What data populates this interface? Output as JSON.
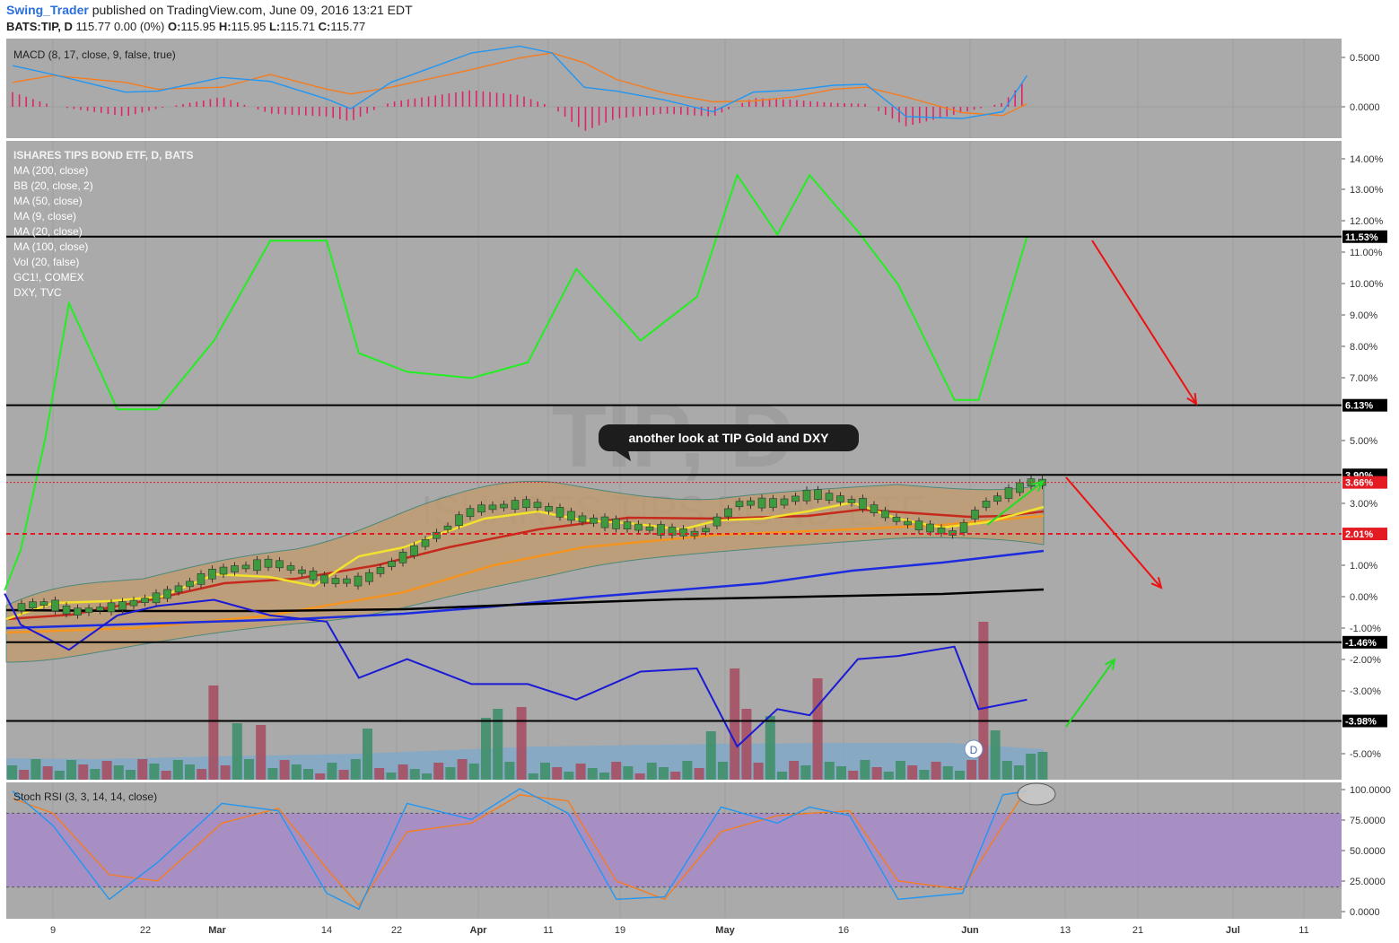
{
  "header": {
    "author": "Swing_Trader",
    "published": "published on TradingView.com, June 09, 2016 13:21 EDT",
    "symbol": "BATS:TIP, D",
    "quote": "115.77 0.00 (0%)",
    "o_label": "O:",
    "o": "115.95",
    "h_label": "H:",
    "h": "115.95",
    "l_label": "L:",
    "l": "115.71",
    "c_label": "C:",
    "c": "115.77"
  },
  "macd": {
    "title": "MACD (8, 17, close, 9, false, true)",
    "axis": [
      "0.5000",
      "0.0000"
    ]
  },
  "main": {
    "legend": [
      "ISHARES TIPS BOND ETF, D, BATS",
      "MA (200, close)",
      "BB (20, close, 2)",
      "MA (50, close)",
      "MA (9, close)",
      "MA (20, close)",
      "MA (100, close)",
      "Vol (20, false)",
      "GC1!, COMEX",
      "DXY, TVC"
    ],
    "watermark_big": "TIP, D",
    "watermark_small": "ISHARES TIPS BOND ETF",
    "annotation": "another look at TIP Gold and DXY",
    "event_marker": "D",
    "axis": [
      "14.00%",
      "13.00%",
      "12.00%",
      "11.00%",
      "10.00%",
      "9.00%",
      "8.00%",
      "7.00%",
      "5.00%",
      "3.00%",
      "1.00%",
      "0.00%",
      "-1.00%",
      "-2.00%",
      "-3.00%",
      "-5.00%"
    ],
    "tags": [
      {
        "label": "11.53%",
        "value": 11.53,
        "color": "#000000"
      },
      {
        "label": "6.13%",
        "value": 6.13,
        "color": "#000000"
      },
      {
        "label": "3.90%",
        "value": 3.9,
        "color": "#000000"
      },
      {
        "label": "3.66%",
        "value": 3.66,
        "color": "#e31b23"
      },
      {
        "label": "2.01%",
        "value": 2.01,
        "color": "#e31b23"
      },
      {
        "label": "-1.46%",
        "value": -1.46,
        "color": "#000000"
      },
      {
        "label": "-3.98%",
        "value": -3.98,
        "color": "#000000"
      }
    ]
  },
  "stoch": {
    "title": "Stoch RSI (3, 3, 14, 14, close)",
    "axis": [
      "100.0000",
      "75.0000",
      "50.0000",
      "25.0000",
      "0.0000"
    ]
  },
  "xaxis": [
    "9",
    "22",
    "Mar",
    "14",
    "22",
    "Apr",
    "11",
    "19",
    "May",
    "16",
    "Jun",
    "13",
    "21",
    "Jul",
    "11"
  ],
  "colors": {
    "panel_bg": "#aaaaaa",
    "gold_line": "#22ee22",
    "dxy_line": "#1a1ad6",
    "ma200": "#000000",
    "ma50": "#f5941f",
    "ma9": "#f2e22b",
    "ma20": "#c62a1c",
    "ma100": "#1c2cde",
    "bb_fill": "#c49a6c",
    "bull_candle": "#3d9a3d",
    "bear_candle": "#cc3333",
    "macd_line": "#2196f3",
    "signal_line": "#f57c1f",
    "stoch_k": "#2196f3",
    "stoch_d": "#f57c1f",
    "stoch_band": "#a78bc9",
    "arrow_red": "#ee1111",
    "arrow_green": "#22dd22"
  },
  "chart_data": [
    {
      "type": "line",
      "title": "MACD (8, 17, close, 9, false, true)",
      "x": [
        "Feb 4",
        "Feb 9",
        "Feb 18",
        "Feb 22",
        "Mar 1",
        "Mar 7",
        "Mar 14",
        "Mar 17",
        "Mar 22",
        "Apr 1",
        "Apr 7",
        "Apr 11",
        "Apr 15",
        "Apr 19",
        "Apr 25",
        "May 1",
        "May 6",
        "May 11",
        "May 16",
        "May 20",
        "May 25",
        "Jun 1",
        "Jun 6",
        "Jun 9"
      ],
      "series": [
        {
          "values": [
            0.42,
            0.33,
            0.15,
            0.16,
            0.3,
            0.26,
            0.08,
            -0.02,
            0.25,
            0.55,
            0.62,
            0.55,
            0.2,
            0.16,
            0.07,
            -0.05,
            0.15,
            0.17,
            0.22,
            0.23,
            -0.1,
            -0.12,
            -0.05,
            0.32
          ]
        },
        {
          "values": [
            0.25,
            0.32,
            0.25,
            0.18,
            0.2,
            0.33,
            0.18,
            0.13,
            0.2,
            0.38,
            0.5,
            0.55,
            0.45,
            0.28,
            0.14,
            0.05,
            0.06,
            0.1,
            0.18,
            0.2,
            0.1,
            -0.06,
            -0.09,
            0.03
          ]
        },
        {
          "values": [
            0.15,
            0.01,
            -0.1,
            -0.02,
            0.1,
            -0.07,
            -0.1,
            -0.15,
            0.05,
            0.17,
            0.12,
            0.0,
            -0.25,
            -0.12,
            -0.07,
            -0.1,
            0.09,
            0.07,
            0.04,
            0.03,
            -0.2,
            -0.06,
            0.04,
            0.29
          ]
        }
      ],
      "ylim": [
        -0.3,
        0.65
      ]
    },
    {
      "type": "line",
      "title": "ISHARES TIPS BOND ETF, D, BATS",
      "x": [
        "Feb 3",
        "Feb 5",
        "Feb 8",
        "Feb 11",
        "Feb 17",
        "Feb 22",
        "Feb 29",
        "Mar 7",
        "Mar 14",
        "Mar 18",
        "Mar 24",
        "Apr 1",
        "Apr 8",
        "Apr 14",
        "Apr 22",
        "Apr 29",
        "May 4",
        "May 9",
        "May 13",
        "May 19",
        "May 24",
        "May 31",
        "Jun 3",
        "Jun 9"
      ],
      "series": [
        {
          "values": [
            0.2,
            1.5,
            5.0,
            9.4,
            6.0,
            6.0,
            8.2,
            11.4,
            11.4,
            7.8,
            7.2,
            7.0,
            7.5,
            10.5,
            8.2,
            9.6,
            13.5,
            11.6,
            13.5,
            11.7,
            10.0,
            6.3,
            6.3,
            11.53
          ]
        },
        {
          "values": [
            0.1,
            -0.9,
            -1.3,
            -1.7,
            -0.6,
            -0.3,
            -0.1,
            -0.6,
            -0.8,
            -2.6,
            -2.0,
            -2.8,
            -2.8,
            -3.3,
            -2.4,
            -2.3,
            -4.8,
            -3.6,
            -3.8,
            -2.0,
            -1.9,
            -1.6,
            -3.6,
            -3.3
          ]
        },
        {
          "values": [
            -0.5,
            -0.3,
            -0.2,
            -0.5,
            -0.3,
            0.0,
            0.8,
            1.1,
            0.5,
            0.5,
            1.4,
            2.8,
            3.0,
            2.5,
            2.2,
            2.0,
            3.0,
            3.0,
            3.3,
            3.0,
            2.4,
            2.0,
            2.9,
            3.66
          ]
        },
        {
          "values": [
            -1.1,
            -1.1,
            -1.0,
            -1.0,
            -0.9,
            -0.8,
            -0.7,
            -0.6,
            -0.4,
            -0.3,
            -0.1,
            0.0,
            0.2,
            0.4,
            0.5,
            0.6,
            0.7,
            0.8,
            0.9,
            1.0,
            1.1,
            1.2,
            1.3,
            1.4
          ]
        },
        {
          "values": [
            -0.5,
            -0.5,
            -0.5,
            -0.45,
            -0.4,
            -0.38,
            -0.35,
            -0.32,
            -0.3,
            -0.27,
            -0.23,
            -0.2,
            -0.15,
            -0.1,
            -0.05,
            -0.02,
            0.0,
            0.03,
            0.05,
            0.08,
            0.1,
            0.13,
            0.16,
            0.2
          ]
        }
      ],
      "ylim": [
        -5.5,
        14.5
      ]
    },
    {
      "type": "line",
      "title": "Stoch RSI (3, 3, 14, 14, close)",
      "x": [
        "Feb 4",
        "Feb 9",
        "Feb 16",
        "Feb 22",
        "Mar 1",
        "Mar 8",
        "Mar 14",
        "Mar 18",
        "Mar 24",
        "Apr 1",
        "Apr 7",
        "Apr 13",
        "Apr 19",
        "Apr 25",
        "May 2",
        "May 9",
        "May 13",
        "May 18",
        "May 24",
        "Jun 1",
        "Jun 6",
        "Jun 9"
      ],
      "series": [
        {
          "values": [
            98,
            70,
            10,
            40,
            88,
            82,
            15,
            2,
            88,
            75,
            100,
            80,
            10,
            12,
            85,
            72,
            85,
            78,
            10,
            15,
            95,
            98
          ]
        },
        {
          "values": [
            92,
            80,
            30,
            25,
            72,
            84,
            35,
            5,
            65,
            72,
            95,
            90,
            25,
            10,
            65,
            78,
            80,
            82,
            25,
            18,
            70,
            100
          ]
        }
      ],
      "ylim": [
        0,
        100
      ]
    }
  ]
}
